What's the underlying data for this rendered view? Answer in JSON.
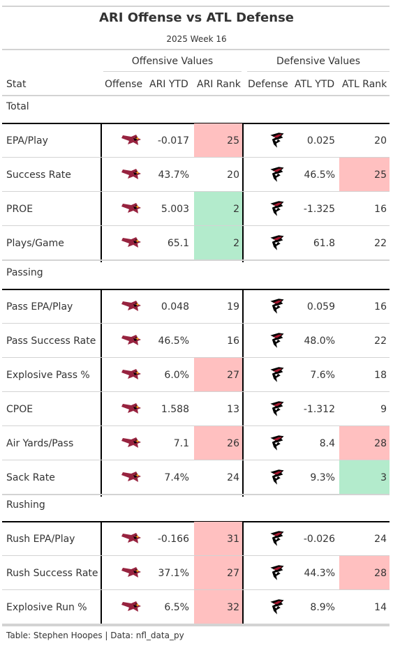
{
  "title": "ARI Offense vs ATL Defense",
  "subtitle": "2025 Week 16",
  "spanners": {
    "offense": "Offensive Values",
    "defense": "Defensive Values"
  },
  "columns": {
    "stat": "Stat",
    "offense": "Offense",
    "ari_ytd": "ARI YTD",
    "ari_rank": "ARI Rank",
    "defense": "Defense",
    "atl_ytd": "ATL YTD",
    "atl_rank": "ATL Rank"
  },
  "groups": [
    "Total",
    "Passing",
    "Rushing"
  ],
  "rows": [
    {
      "stat": "EPA/Play",
      "ari_ytd": "-0.017",
      "ari_rank": "25",
      "ari_hl": "red",
      "atl_ytd": "0.025",
      "atl_rank": "20",
      "atl_hl": ""
    },
    {
      "stat": "Success Rate",
      "ari_ytd": "43.7%",
      "ari_rank": "20",
      "ari_hl": "",
      "atl_ytd": "46.5%",
      "atl_rank": "25",
      "atl_hl": "red"
    },
    {
      "stat": "PROE",
      "ari_ytd": "5.003",
      "ari_rank": "2",
      "ari_hl": "green",
      "atl_ytd": "-1.325",
      "atl_rank": "16",
      "atl_hl": ""
    },
    {
      "stat": "Plays/Game",
      "ari_ytd": "65.1",
      "ari_rank": "2",
      "ari_hl": "green",
      "atl_ytd": "61.8",
      "atl_rank": "22",
      "atl_hl": ""
    },
    {
      "stat": "Pass EPA/Play",
      "ari_ytd": "0.048",
      "ari_rank": "19",
      "ari_hl": "",
      "atl_ytd": "0.059",
      "atl_rank": "16",
      "atl_hl": ""
    },
    {
      "stat": "Pass Success Rate",
      "ari_ytd": "46.5%",
      "ari_rank": "16",
      "ari_hl": "",
      "atl_ytd": "48.0%",
      "atl_rank": "22",
      "atl_hl": ""
    },
    {
      "stat": "Explosive Pass %",
      "ari_ytd": "6.0%",
      "ari_rank": "27",
      "ari_hl": "red",
      "atl_ytd": "7.6%",
      "atl_rank": "18",
      "atl_hl": ""
    },
    {
      "stat": "CPOE",
      "ari_ytd": "1.588",
      "ari_rank": "13",
      "ari_hl": "",
      "atl_ytd": "-1.312",
      "atl_rank": "9",
      "atl_hl": ""
    },
    {
      "stat": "Air Yards/Pass",
      "ari_ytd": "7.1",
      "ari_rank": "26",
      "ari_hl": "red",
      "atl_ytd": "8.4",
      "atl_rank": "28",
      "atl_hl": "red"
    },
    {
      "stat": "Sack Rate",
      "ari_ytd": "7.4%",
      "ari_rank": "24",
      "ari_hl": "",
      "atl_ytd": "9.3%",
      "atl_rank": "3",
      "atl_hl": "green"
    },
    {
      "stat": "Rush EPA/Play",
      "ari_ytd": "-0.166",
      "ari_rank": "31",
      "ari_hl": "red",
      "atl_ytd": "-0.026",
      "atl_rank": "24",
      "atl_hl": ""
    },
    {
      "stat": "Rush Success Rate",
      "ari_ytd": "37.1%",
      "ari_rank": "27",
      "ari_hl": "red",
      "atl_ytd": "44.3%",
      "atl_rank": "28",
      "atl_hl": "red"
    },
    {
      "stat": "Explosive Run %",
      "ari_ytd": "6.5%",
      "ari_rank": "32",
      "ari_hl": "red",
      "atl_ytd": "8.9%",
      "atl_rank": "14",
      "atl_hl": ""
    }
  ],
  "icons": {
    "offense_logo": "cardinals-logo-icon",
    "defense_logo": "falcons-logo-icon"
  },
  "colors": {
    "bad": "#ffc0c0",
    "good": "#b3ebcc",
    "cardinals_red": "#97233f",
    "falcons_black": "#000000",
    "falcons_red": "#a71930"
  },
  "footer": "Table: Stephen Hoopes | Data: nfl_data_py"
}
